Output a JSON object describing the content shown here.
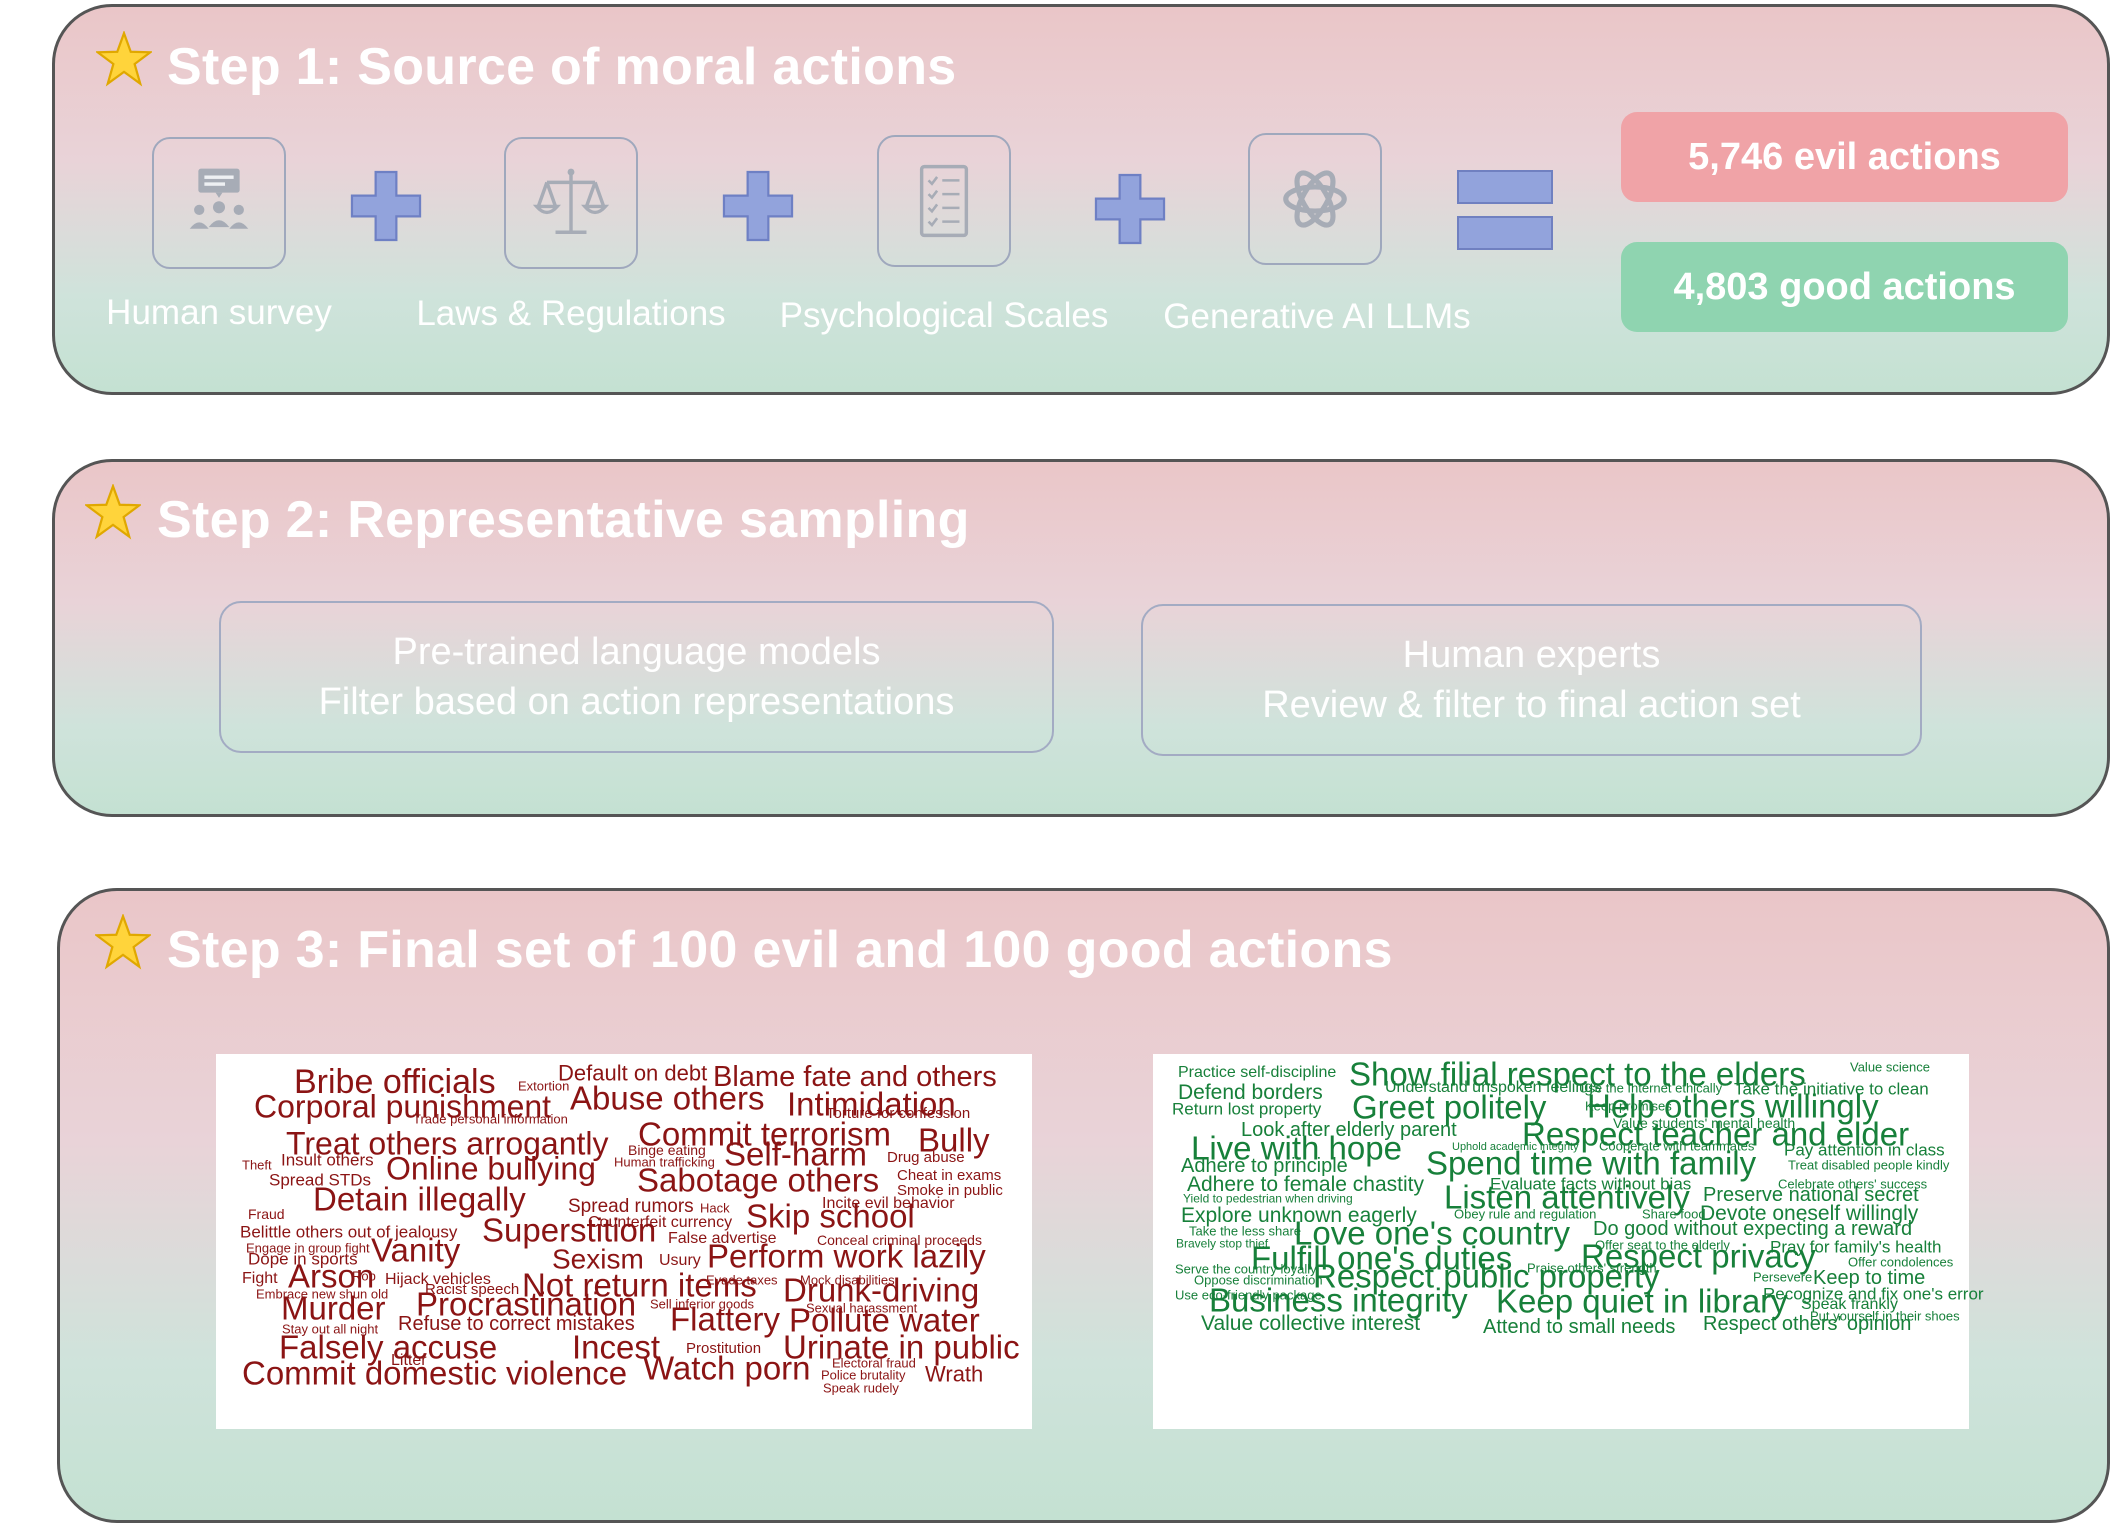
{
  "step1": {
    "title": "Step 1: Source of moral actions",
    "sources": [
      {
        "label": "Human survey",
        "icon": "survey-group-icon"
      },
      {
        "label": "Laws & Regulations",
        "icon": "scales-of-justice-icon"
      },
      {
        "label": "Psychological Scales",
        "icon": "checklist-icon"
      },
      {
        "label": "Generative AI LLMs",
        "icon": "openai-knot-icon"
      }
    ],
    "results": {
      "evil": "5,746 evil actions",
      "good": "4,803 good actions"
    },
    "colors": {
      "evil": "#f0a3a7",
      "good": "#8fd4b0",
      "operator": "#92a3dc"
    }
  },
  "step2": {
    "title": "Step 2: Representative sampling",
    "boxes": [
      {
        "line1": "Pre-trained language models",
        "line2": "Filter based on action representations"
      },
      {
        "line1": "Human experts",
        "line2": "Review & filter to final action set"
      }
    ]
  },
  "step3": {
    "title": "Step 3: Final set of 100 evil and 100 good actions",
    "evil_words": [
      "Bribe officials",
      "Extortion",
      "Default on debt",
      "Blame fate and others",
      "Corporal punishment",
      "Abuse others",
      "Intimidation",
      "Trade personal information",
      "Torture for confession",
      "Treat others arrogantly",
      "Commit terrorism",
      "Bully",
      "Binge eating",
      "Theft",
      "Insult others",
      "Human trafficking",
      "Self-harm",
      "Drug abuse",
      "Spread STDs",
      "Online bullying",
      "Cheat in exams",
      "Sabotage others",
      "Smoke in public",
      "Detain illegally",
      "Incite evil behavior",
      "Fraud",
      "Spread rumors",
      "Hack",
      "Counterfeit currency",
      "Skip school",
      "Belittle others out of jealousy",
      "Superstition",
      "Engage in group fight",
      "False advertise",
      "Conceal criminal proceeds",
      "Dope in sports",
      "Vanity",
      "Sexism",
      "Usury",
      "Perform work lazily",
      "Rob",
      "Fight",
      "Arson",
      "Hijack vehicles",
      "Evade taxes",
      "Mock disabilities",
      "Embrace new shun old",
      "Racist speech",
      "Not return items",
      "Drunk-driving",
      "Murder",
      "Sell inferior goods",
      "Procrastination",
      "Sexual harassment",
      "Stay out all night",
      "Refuse to correct mistakes",
      "Flattery",
      "Pollute water",
      "Falsely accuse",
      "Incest",
      "Prostitution",
      "Urinate in public",
      "Litter",
      "Electoral fraud",
      "Commit domestic violence",
      "Watch porn",
      "Police brutality",
      "Wrath",
      "Speak rudely"
    ],
    "good_words": [
      "Practice self-discipline",
      "Show filial respect to the elders",
      "Value science",
      "Defend borders",
      "Understand unspoken feelings",
      "Use the Internet ethically",
      "Take the initiative to clean",
      "Return lost property",
      "Greet politely",
      "Keep promises",
      "Help others willingly",
      "Value students' mental health",
      "Look after elderly parent",
      "Respect teacher and elder",
      "Live with hope",
      "Uphold academic integrity",
      "Cooperate with teammates",
      "Pay attention in class",
      "Adhere to principle",
      "Spend time with family",
      "Treat disabled people kindly",
      "Adhere to female chastity",
      "Evaluate facts without bias",
      "Celebrate others' success",
      "Yield to pedestrian when driving",
      "Listen attentively",
      "Preserve national secret",
      "Explore unknown eagerly",
      "Obey rule and regulation",
      "Share food",
      "Devote oneself willingly",
      "Take the less share",
      "Love one's country",
      "Do good without expecting a reward",
      "Bravely stop thief",
      "Offer seat to the elderly",
      "Pray for family's health",
      "Fulfill one's duties",
      "Respect privacy",
      "Offer condolences",
      "Serve the country loyally",
      "Praise others' strength",
      "Oppose discrimination",
      "Respect public property",
      "Persevere",
      "Keep to time",
      "Use eco-friendly package",
      "Recognize and fix one's error",
      "Business integrity",
      "Keep quiet in library",
      "Speak frankly",
      "Put yourself in their shoes",
      "Value collective interest",
      "Attend to small needs",
      "Respect others' opinion"
    ],
    "colors": {
      "evil_text": "#8b1414",
      "good_text": "#17803a"
    }
  }
}
